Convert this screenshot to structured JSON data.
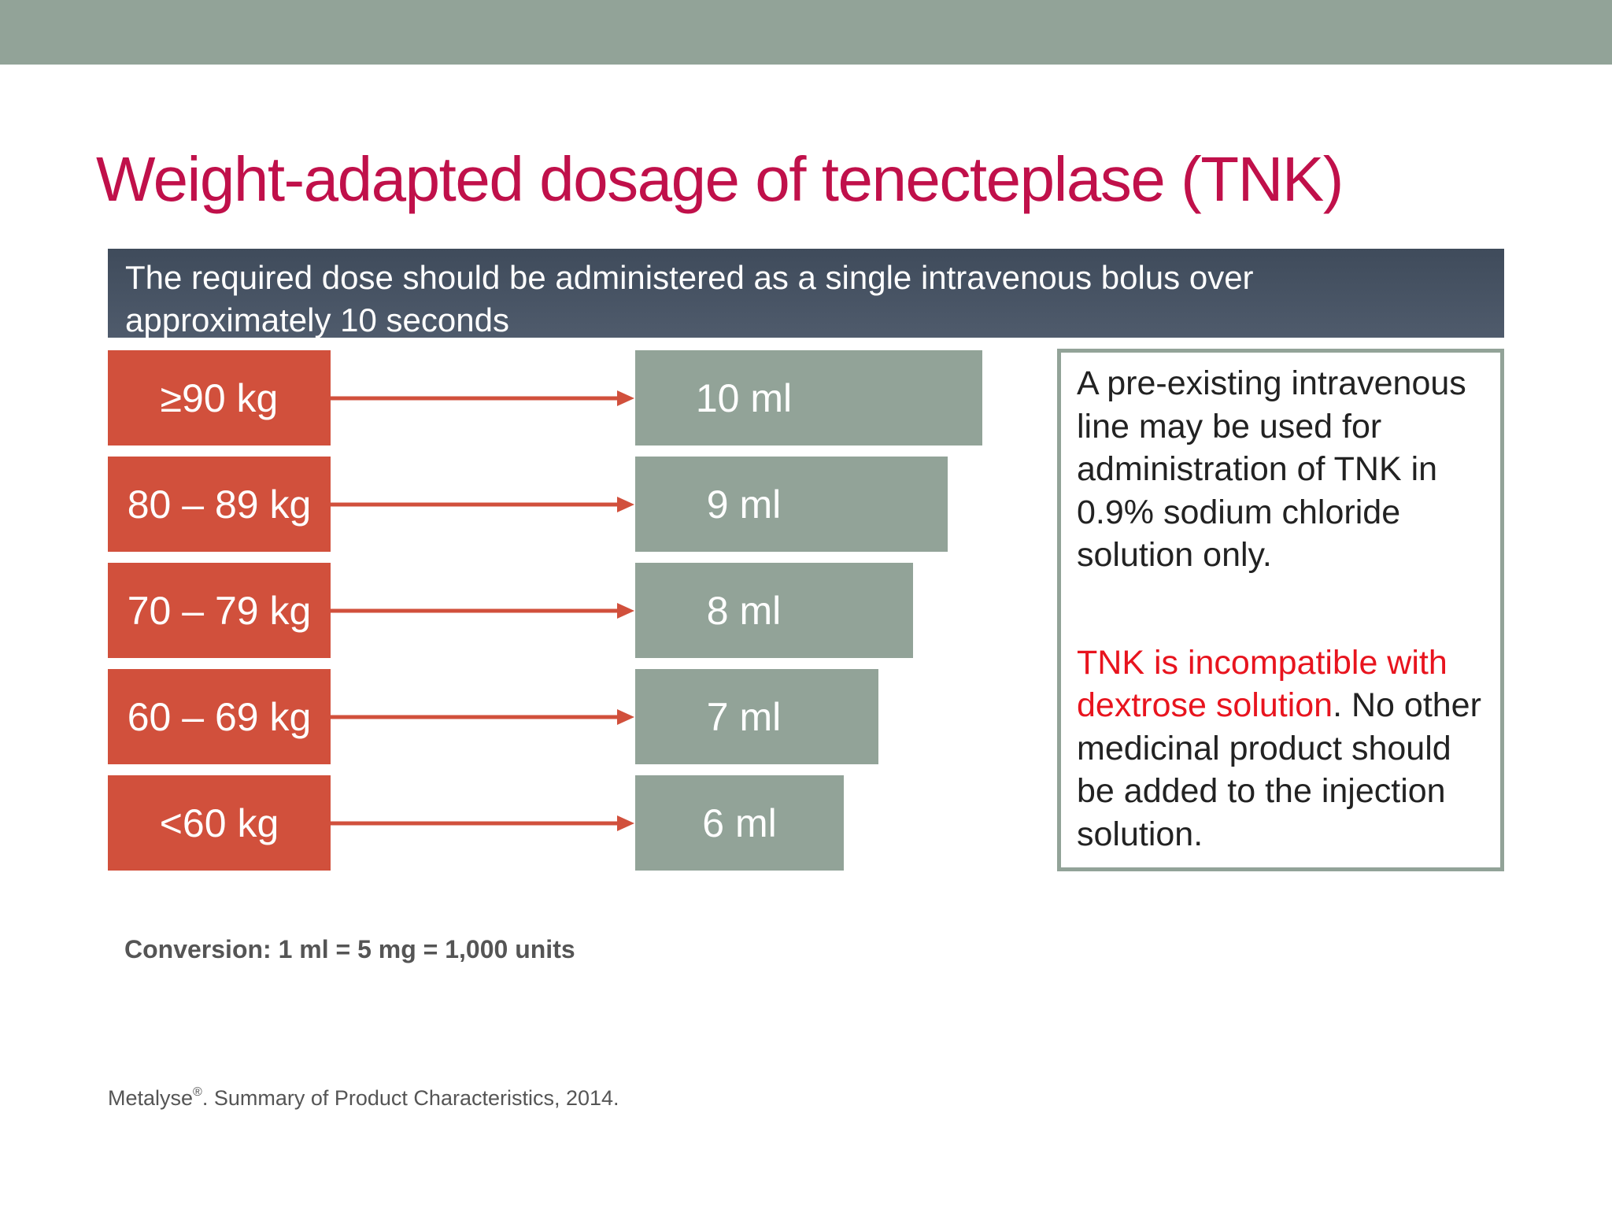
{
  "header_bar_color": "#92a398",
  "title": "Weight-adapted dosage of tenecteplase (TNK)",
  "banner": {
    "line1": "The required dose should be administered as a single intravenous bolus over",
    "line2": "approximately 10 seconds"
  },
  "dosing": [
    {
      "weight": "≥90 kg",
      "volume": "10 ml",
      "volume_ml": 10
    },
    {
      "weight": "80 – 89 kg",
      "volume": "9 ml",
      "volume_ml": 9
    },
    {
      "weight": "70 – 79 kg",
      "volume": "8 ml",
      "volume_ml": 8
    },
    {
      "weight": "60 – 69 kg",
      "volume": "7 ml",
      "volume_ml": 7
    },
    {
      "weight": "<60 kg",
      "volume": "6 ml",
      "volume_ml": 6
    }
  ],
  "colors": {
    "title": "#c0104a",
    "weight_box": "#d1503c",
    "arrow": "#d1503c",
    "volume_box": "#92a398",
    "banner": "#4a5667",
    "warning_text": "#e8141e"
  },
  "note": {
    "paragraph1": "A pre-existing intravenous line may be used for administration of TNK in 0.9% sodium chloride solution only.",
    "paragraph2_highlight": "TNK is incompatible with dextrose solution",
    "paragraph2_rest": ". No other medicinal product should be added to the injection solution."
  },
  "conversion": "Conversion: 1 ml = 5 mg = 1,000 units",
  "reference": {
    "brand": "Metalyse",
    "mark": "®",
    "text": ". Summary of Product Characteristics, 2014."
  }
}
